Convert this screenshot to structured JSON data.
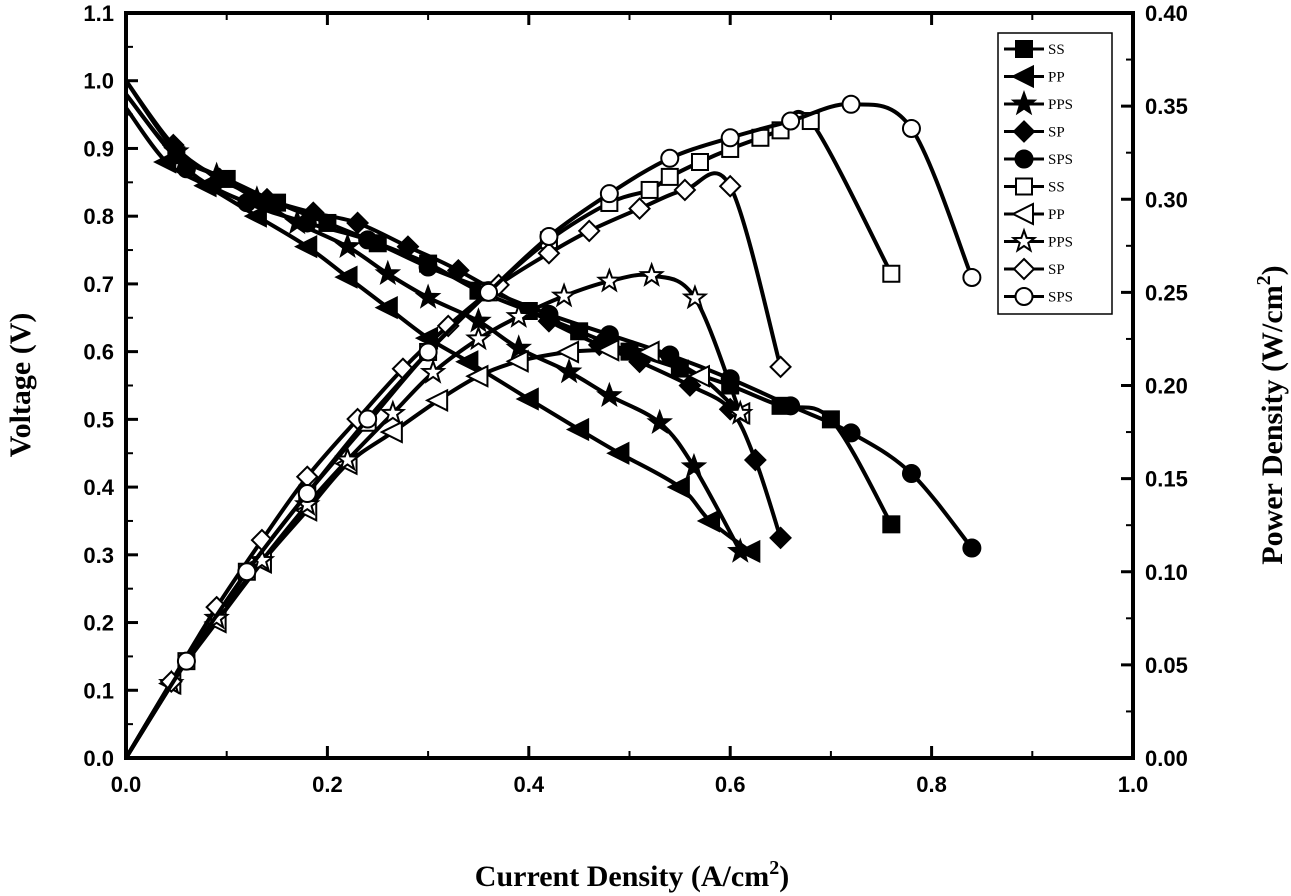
{
  "chart_data": {
    "type": "line",
    "xlabel": "Current Density (A/cm",
    "xlabel_sup": "2",
    "xlabel_close": ")",
    "ylabel_left": "Voltage (V)",
    "ylabel_right": "Power Density (W/cm",
    "ylabel_right_sup": "2",
    "ylabel_right_close": ")",
    "xlim": [
      0.0,
      1.0
    ],
    "ylim_left": [
      0.0,
      1.1
    ],
    "ylim_right": [
      0.0,
      0.4
    ],
    "x_ticks": [
      "0.0",
      "0.2",
      "0.4",
      "0.6",
      "0.8",
      "1.0"
    ],
    "y_left_ticks": [
      "0.0",
      "0.1",
      "0.2",
      "0.3",
      "0.4",
      "0.5",
      "0.6",
      "0.7",
      "0.8",
      "0.9",
      "1.0",
      "1.1"
    ],
    "y_right_ticks": [
      "0.00",
      "0.05",
      "0.10",
      "0.15",
      "0.20",
      "0.25",
      "0.30",
      "0.35",
      "0.40"
    ],
    "legend_position": "top-right",
    "legend": [
      {
        "label": "SS",
        "marker": "square",
        "fill": "black"
      },
      {
        "label": "PP",
        "marker": "triangle-left",
        "fill": "black"
      },
      {
        "label": "PPS",
        "marker": "star",
        "fill": "black"
      },
      {
        "label": "SP",
        "marker": "diamond",
        "fill": "black"
      },
      {
        "label": "SPS",
        "marker": "circle",
        "fill": "black"
      },
      {
        "label": "SS",
        "marker": "square",
        "fill": "white"
      },
      {
        "label": "PP",
        "marker": "triangle-left",
        "fill": "white"
      },
      {
        "label": "PPS",
        "marker": "star",
        "fill": "white"
      },
      {
        "label": "SP",
        "marker": "diamond",
        "fill": "white"
      },
      {
        "label": "SPS",
        "marker": "circle",
        "fill": "white"
      }
    ],
    "series": [
      {
        "name": "SS",
        "axis": "left",
        "marker": "square",
        "fill": "black",
        "x": [
          0.0,
          0.05,
          0.1,
          0.15,
          0.2,
          0.25,
          0.3,
          0.35,
          0.4,
          0.45,
          0.5,
          0.55,
          0.6,
          0.65,
          0.7,
          0.76
        ],
        "y": [
          0.98,
          0.89,
          0.855,
          0.82,
          0.79,
          0.76,
          0.73,
          0.69,
          0.66,
          0.63,
          0.6,
          0.575,
          0.55,
          0.52,
          0.5,
          0.345
        ]
      },
      {
        "name": "PP",
        "axis": "left",
        "marker": "triangle-left",
        "fill": "black",
        "x": [
          0.0,
          0.04,
          0.08,
          0.13,
          0.18,
          0.22,
          0.26,
          0.3,
          0.34,
          0.4,
          0.45,
          0.49,
          0.55,
          0.58,
          0.62
        ],
        "y": [
          0.96,
          0.88,
          0.845,
          0.8,
          0.755,
          0.71,
          0.665,
          0.62,
          0.585,
          0.53,
          0.485,
          0.45,
          0.4,
          0.35,
          0.305
        ]
      },
      {
        "name": "PPS",
        "axis": "left",
        "marker": "star",
        "fill": "black",
        "x": [
          0.0,
          0.05,
          0.09,
          0.13,
          0.17,
          0.22,
          0.26,
          0.3,
          0.35,
          0.39,
          0.44,
          0.48,
          0.53,
          0.564,
          0.61
        ],
        "y": [
          1.0,
          0.895,
          0.86,
          0.825,
          0.79,
          0.755,
          0.715,
          0.68,
          0.645,
          0.605,
          0.57,
          0.535,
          0.495,
          0.43,
          0.305
        ]
      },
      {
        "name": "SP",
        "axis": "left",
        "marker": "diamond",
        "fill": "black",
        "x": [
          0.0,
          0.047,
          0.093,
          0.14,
          0.186,
          0.23,
          0.28,
          0.33,
          0.42,
          0.47,
          0.51,
          0.56,
          0.6,
          0.625,
          0.65
        ],
        "y": [
          1.0,
          0.905,
          0.855,
          0.825,
          0.805,
          0.79,
          0.755,
          0.72,
          0.645,
          0.61,
          0.585,
          0.55,
          0.515,
          0.44,
          0.325
        ]
      },
      {
        "name": "SPS",
        "axis": "left",
        "marker": "circle",
        "fill": "black",
        "x": [
          0.0,
          0.06,
          0.12,
          0.18,
          0.24,
          0.3,
          0.36,
          0.42,
          0.48,
          0.54,
          0.6,
          0.66,
          0.72,
          0.78,
          0.84
        ],
        "y": [
          0.98,
          0.87,
          0.82,
          0.79,
          0.765,
          0.725,
          0.69,
          0.655,
          0.625,
          0.595,
          0.56,
          0.52,
          0.48,
          0.42,
          0.31
        ]
      },
      {
        "name": "SS",
        "axis": "right",
        "marker": "square",
        "fill": "white",
        "x": [
          0.0,
          0.06,
          0.12,
          0.18,
          0.24,
          0.3,
          0.36,
          0.42,
          0.48,
          0.52,
          0.54,
          0.57,
          0.6,
          0.63,
          0.65,
          0.68,
          0.76
        ],
        "y": [
          0.0,
          0.052,
          0.1,
          0.142,
          0.18,
          0.218,
          0.25,
          0.278,
          0.298,
          0.305,
          0.312,
          0.32,
          0.327,
          0.333,
          0.337,
          0.342,
          0.26
        ]
      },
      {
        "name": "PP",
        "axis": "right",
        "marker": "triangle-left",
        "fill": "white",
        "x": [
          0.0,
          0.045,
          0.09,
          0.135,
          0.18,
          0.22,
          0.265,
          0.31,
          0.35,
          0.39,
          0.44,
          0.48,
          0.52,
          0.57,
          0.61
        ],
        "y": [
          0.0,
          0.04,
          0.073,
          0.105,
          0.133,
          0.158,
          0.175,
          0.192,
          0.205,
          0.213,
          0.218,
          0.219,
          0.218,
          0.205,
          0.185
        ]
      },
      {
        "name": "PPS",
        "axis": "right",
        "marker": "star",
        "fill": "white",
        "x": [
          0.0,
          0.045,
          0.09,
          0.135,
          0.18,
          0.22,
          0.265,
          0.305,
          0.35,
          0.39,
          0.435,
          0.48,
          0.522,
          0.565,
          0.61
        ],
        "y": [
          0.0,
          0.04,
          0.075,
          0.106,
          0.136,
          0.16,
          0.185,
          0.207,
          0.225,
          0.237,
          0.248,
          0.256,
          0.259,
          0.247,
          0.185
        ]
      },
      {
        "name": "SP",
        "axis": "right",
        "marker": "diamond",
        "fill": "white",
        "x": [
          0.0,
          0.045,
          0.09,
          0.135,
          0.18,
          0.23,
          0.275,
          0.32,
          0.37,
          0.42,
          0.46,
          0.51,
          0.555,
          0.6,
          0.65
        ],
        "y": [
          0.0,
          0.041,
          0.081,
          0.117,
          0.151,
          0.182,
          0.209,
          0.232,
          0.254,
          0.271,
          0.283,
          0.295,
          0.305,
          0.307,
          0.21
        ]
      },
      {
        "name": "SPS",
        "axis": "right",
        "marker": "circle",
        "fill": "white",
        "x": [
          0.0,
          0.06,
          0.12,
          0.18,
          0.24,
          0.3,
          0.36,
          0.42,
          0.48,
          0.54,
          0.6,
          0.66,
          0.72,
          0.78,
          0.84
        ],
        "y": [
          0.0,
          0.052,
          0.1,
          0.142,
          0.182,
          0.218,
          0.25,
          0.28,
          0.303,
          0.322,
          0.333,
          0.342,
          0.351,
          0.338,
          0.258
        ]
      }
    ]
  }
}
